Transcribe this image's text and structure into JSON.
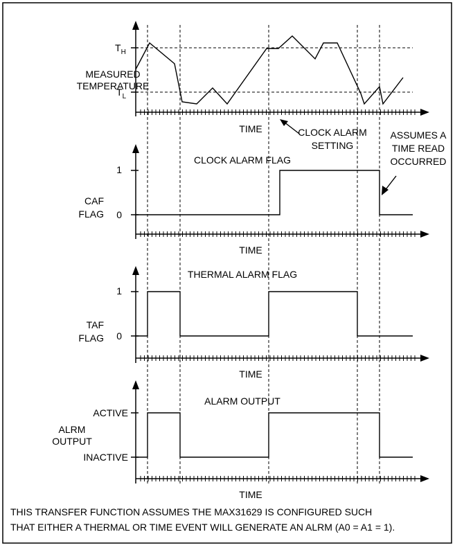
{
  "panel1": {
    "ylabel_line1": "MEASURED",
    "ylabel_line2": "TEMPERATURE",
    "th_main": "T",
    "th_sub": "H",
    "tl_main": "T",
    "tl_sub": "L",
    "xlabel": "TIME",
    "annotation_line1": "CLOCK ALARM",
    "annotation_line2": "SETTING"
  },
  "panel2": {
    "title": "CLOCK ALARM FLAG",
    "ylabel_line1": "CAF",
    "ylabel_line2": "FLAG",
    "tick_high": "1",
    "tick_low": "0",
    "xlabel": "TIME",
    "annotation_line1": "ASSUMES A",
    "annotation_line2": "TIME READ",
    "annotation_line3": "OCCURRED"
  },
  "panel3": {
    "title": "THERMAL ALARM FLAG",
    "ylabel_line1": "TAF",
    "ylabel_line2": "FLAG",
    "tick_high": "1",
    "tick_low": "0",
    "xlabel": "TIME"
  },
  "panel4": {
    "title": "ALARM OUTPUT",
    "ylabel_line1": "ALRM",
    "ylabel_line2": "OUTPUT",
    "tick_high": "ACTIVE",
    "tick_low": "INACTIVE",
    "xlabel": "TIME"
  },
  "footnote_line1": "THIS TRANSFER FUNCTION ASSUMES THE MAX31629 IS CONFIGURED SUCH",
  "footnote_line2": "THAT EITHER A THERMAL OR TIME EVENT WILL GENERATE AN ALRM (A0 = A1 = 1)."
}
